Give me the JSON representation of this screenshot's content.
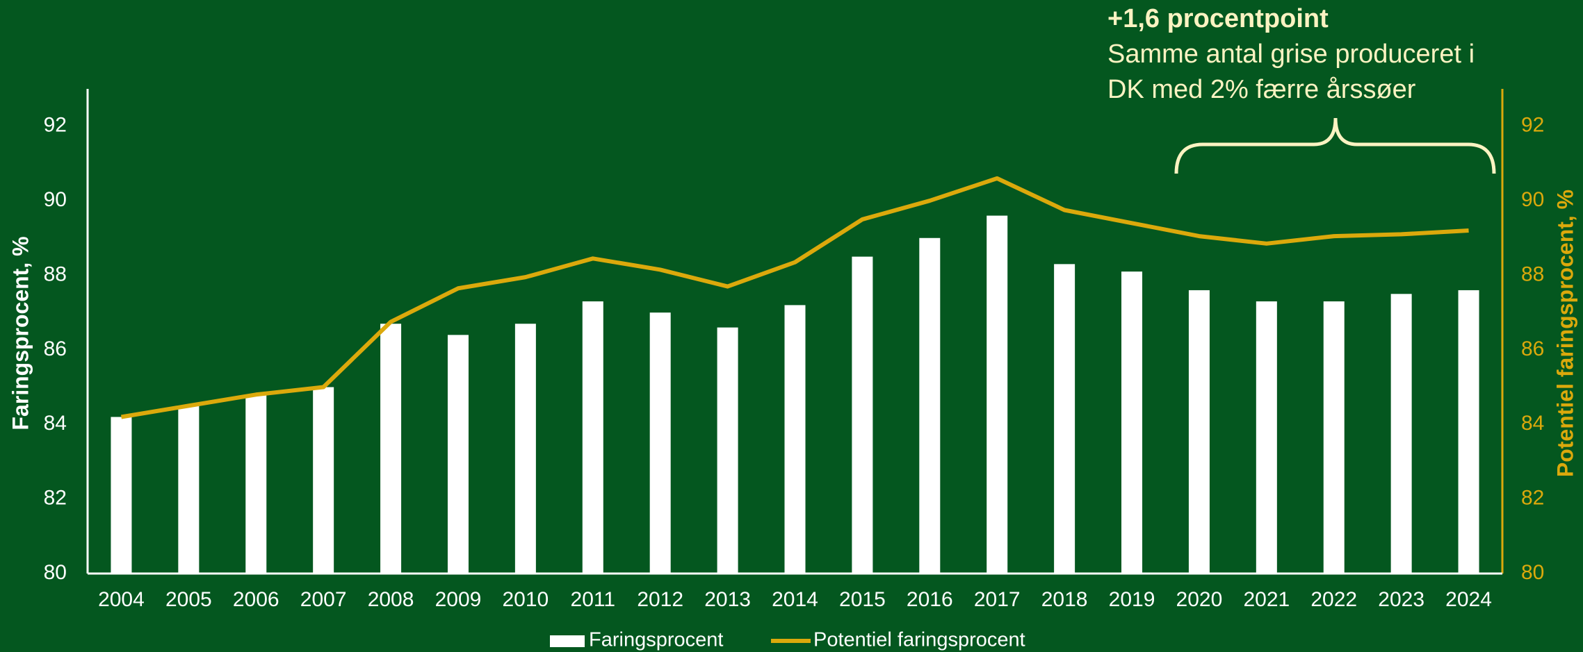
{
  "chart_data": {
    "type": "bar_line",
    "ylabel": "Faringsprocent, %",
    "y2label": "Potentiel faringsprocent, %",
    "annotations": [
      "+1,6 procentpoint",
      "Samme antal grise produceret i",
      "DK med 2% færre årssøer"
    ],
    "categories": [
      "2004",
      "2005",
      "2006",
      "2007",
      "2008",
      "2009",
      "2010",
      "2011",
      "2012",
      "2013",
      "2014",
      "2015",
      "2016",
      "2017",
      "2018",
      "2019",
      "2020",
      "2021",
      "2022",
      "2023",
      "2024"
    ],
    "series": [
      {
        "name": "Faringsprocent",
        "type": "bar",
        "color": "#ffffff",
        "values": [
          84.2,
          84.5,
          84.8,
          85.0,
          86.7,
          86.4,
          86.7,
          87.3,
          87.0,
          86.6,
          87.2,
          88.5,
          89.0,
          89.6,
          88.3,
          88.1,
          87.6,
          87.3,
          87.3,
          87.5,
          87.6
        ]
      },
      {
        "name": "Potentiel faringsprocent",
        "type": "line",
        "axis": "y2",
        "color": "#dba90c",
        "values": [
          84.2,
          84.5,
          84.8,
          85.0,
          86.75,
          87.65,
          87.95,
          88.45,
          88.15,
          87.7,
          88.35,
          89.5,
          90.0,
          90.6,
          89.75,
          89.4,
          89.05,
          88.85,
          89.05,
          89.1,
          89.2
        ]
      }
    ],
    "ylim": [
      80,
      93
    ],
    "yticks": [
      80,
      82,
      84,
      86,
      88,
      90,
      92
    ],
    "y2lim": [
      80,
      93
    ],
    "y2ticks": [
      80,
      82,
      84,
      86,
      88,
      90,
      92
    ],
    "grid": false
  }
}
